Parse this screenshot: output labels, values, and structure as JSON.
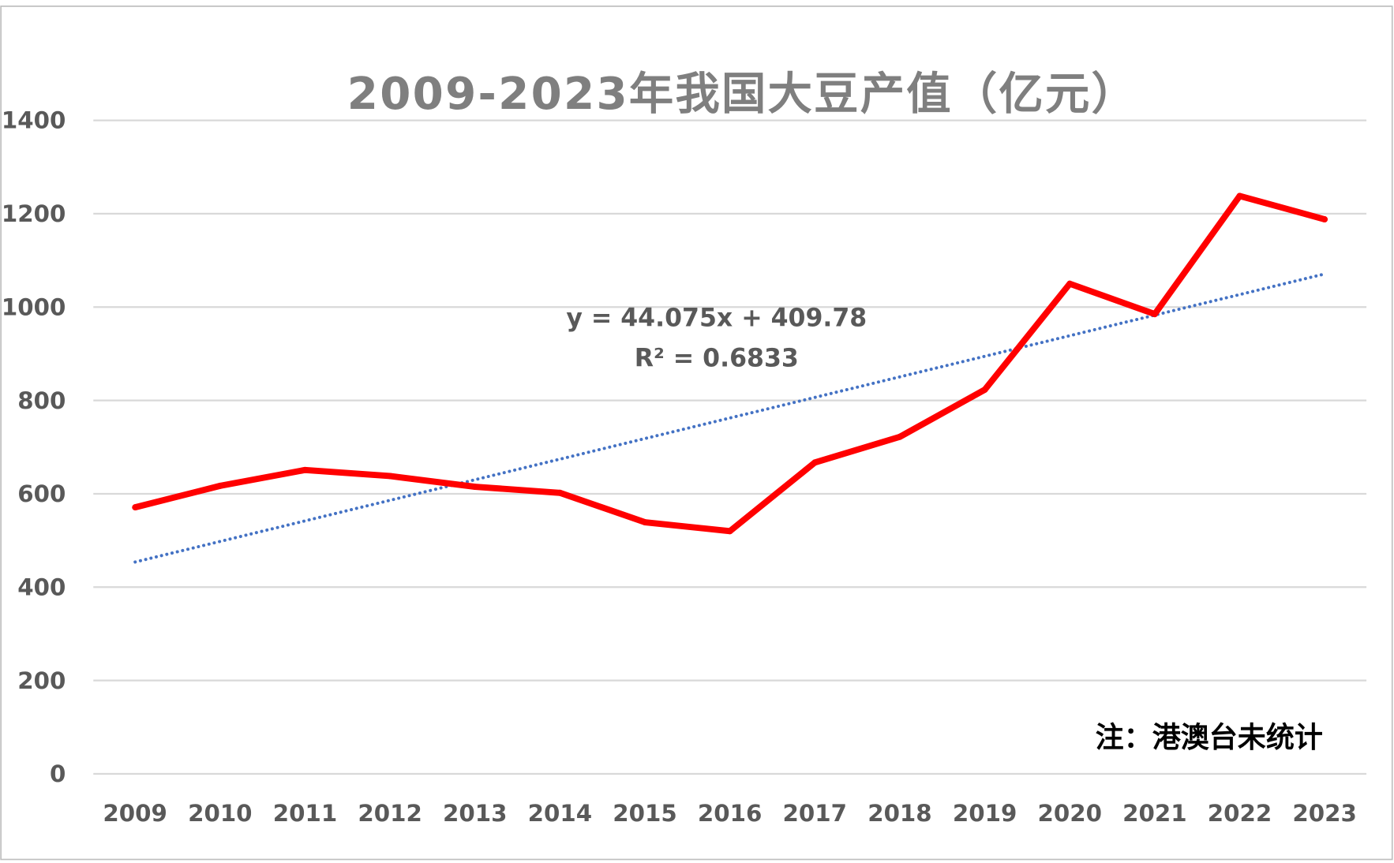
{
  "chart_data": {
    "type": "line",
    "title": "2009-2023年我国大豆产值（亿元）",
    "xlabel": "",
    "ylabel": "",
    "categories": [
      "2009",
      "2010",
      "2011",
      "2012",
      "2013",
      "2014",
      "2015",
      "2016",
      "2017",
      "2018",
      "2019",
      "2020",
      "2021",
      "2022",
      "2023"
    ],
    "series": [
      {
        "values": [
          571,
          617,
          651,
          638,
          615,
          602,
          539,
          520,
          667,
          722,
          823,
          1050,
          985,
          1238,
          1188
        ],
        "color": "#ff0000"
      }
    ],
    "trendline": {
      "type": "linear",
      "slope": 44.075,
      "intercept": 409.78,
      "equation": "y = 44.075x + 409.78",
      "r_squared": "R² = 0.6833",
      "color": "#4472c4",
      "style": "dotted"
    },
    "ylim": [
      0,
      1400
    ],
    "yticks": [
      "0",
      "200",
      "400",
      "600",
      "800",
      "1000",
      "1200",
      "1400"
    ],
    "grid": true,
    "legend": "none",
    "note": "注：港澳台未统计"
  }
}
